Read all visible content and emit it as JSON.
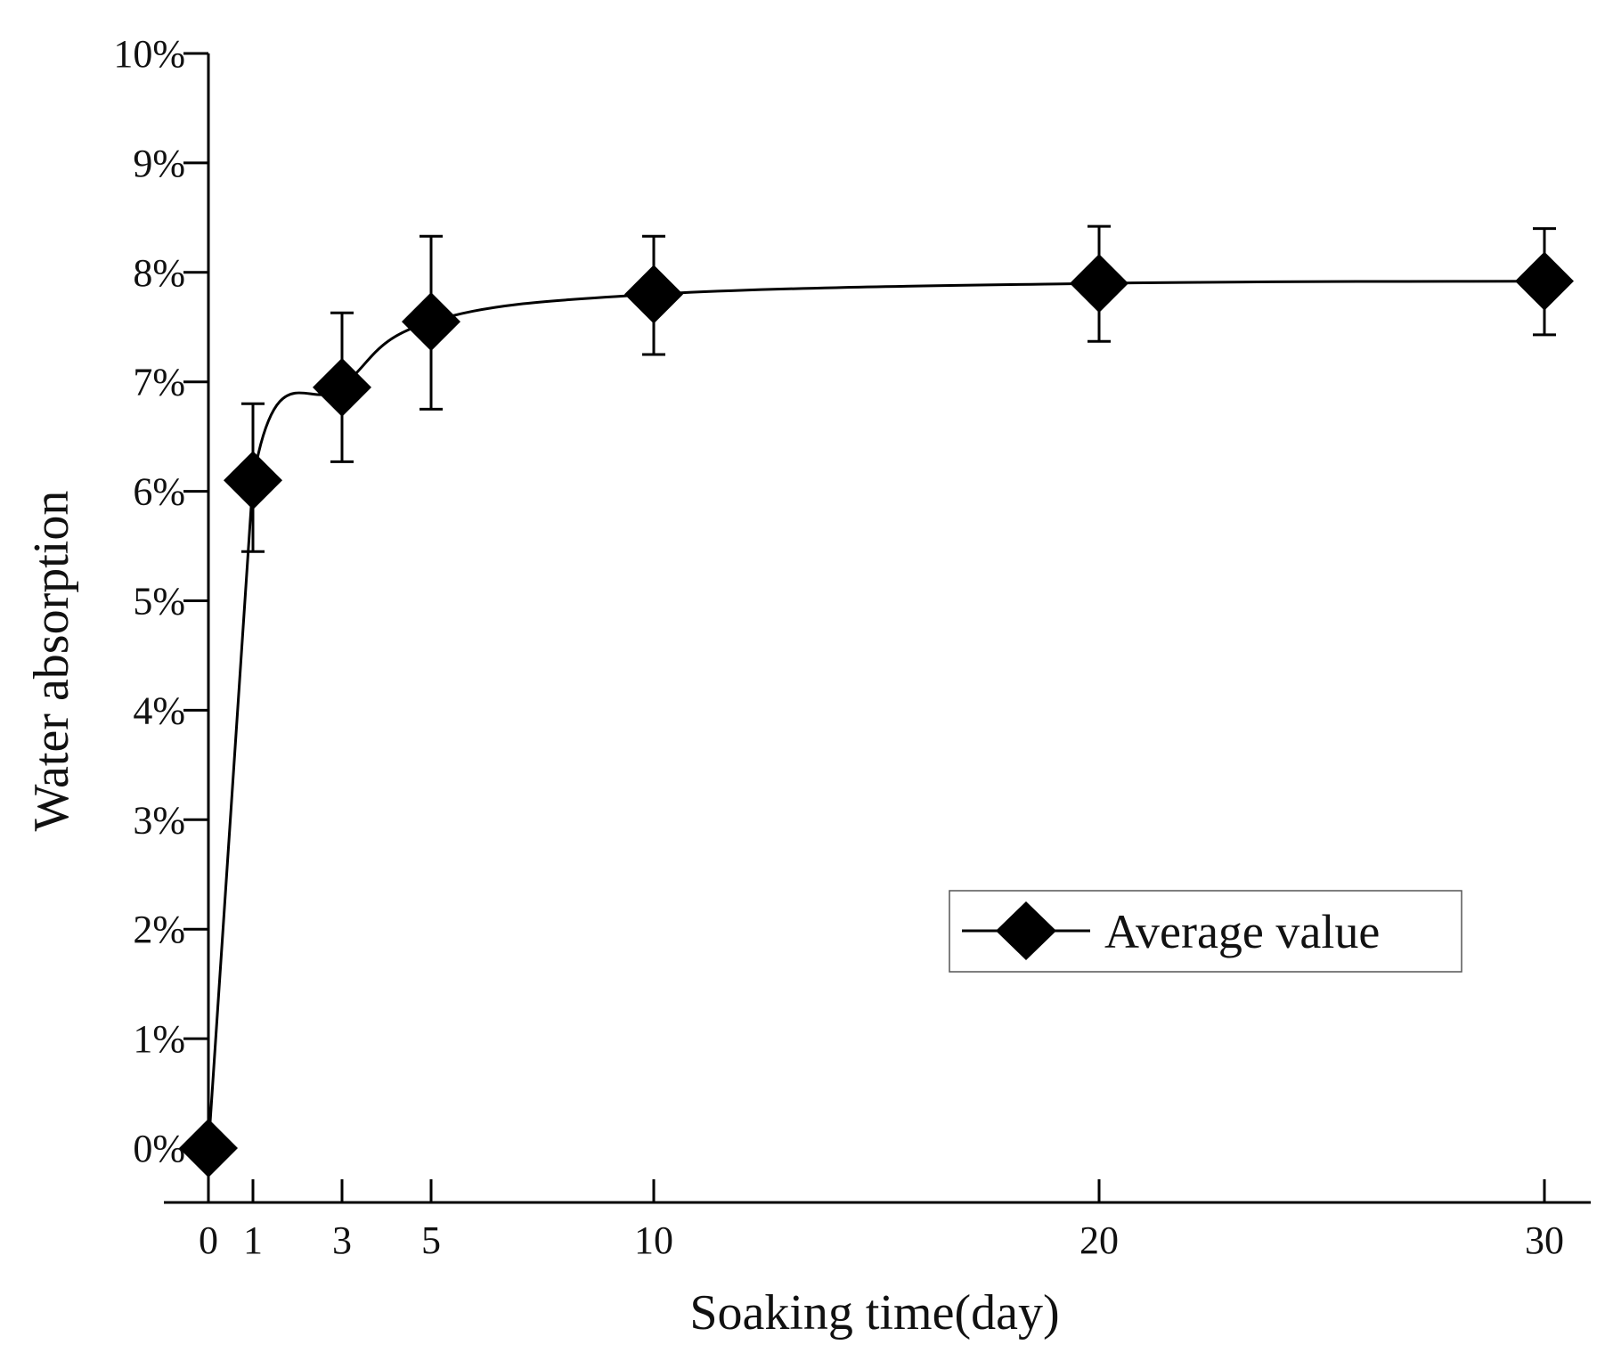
{
  "chart_data": {
    "type": "line",
    "title": "",
    "xlabel": "Soaking time(day)",
    "ylabel": "Water absorption",
    "x_ticks": [
      0,
      1,
      3,
      5,
      10,
      20,
      30
    ],
    "x_tick_labels": [
      "0",
      "1",
      "3",
      "5",
      "10",
      "20",
      "30"
    ],
    "y_ticks": [
      0,
      1,
      2,
      3,
      4,
      5,
      6,
      7,
      8,
      9,
      10
    ],
    "y_tick_labels": [
      "0%",
      "1%",
      "2%",
      "3%",
      "4%",
      "5%",
      "6%",
      "7%",
      "8%",
      "9%",
      "10%"
    ],
    "xlim": [
      -1,
      31
    ],
    "ylim": [
      -0.5,
      10
    ],
    "grid": false,
    "legend_position": "lower-right",
    "series": [
      {
        "name": "Average value",
        "marker": "diamond",
        "color": "#000000",
        "points": [
          {
            "x": 0,
            "y": 0,
            "err_low": null,
            "err_high": null
          },
          {
            "x": 1,
            "y": 6.1,
            "err_low": 5.45,
            "err_high": 6.8
          },
          {
            "x": 3,
            "y": 6.95,
            "err_low": 6.27,
            "err_high": 7.63
          },
          {
            "x": 5,
            "y": 7.55,
            "err_low": 6.75,
            "err_high": 8.33
          },
          {
            "x": 10,
            "y": 7.8,
            "err_low": 7.25,
            "err_high": 8.33
          },
          {
            "x": 20,
            "y": 7.9,
            "err_low": 7.37,
            "err_high": 8.42
          },
          {
            "x": 30,
            "y": 7.92,
            "err_low": 7.43,
            "err_high": 8.4
          }
        ]
      }
    ]
  }
}
